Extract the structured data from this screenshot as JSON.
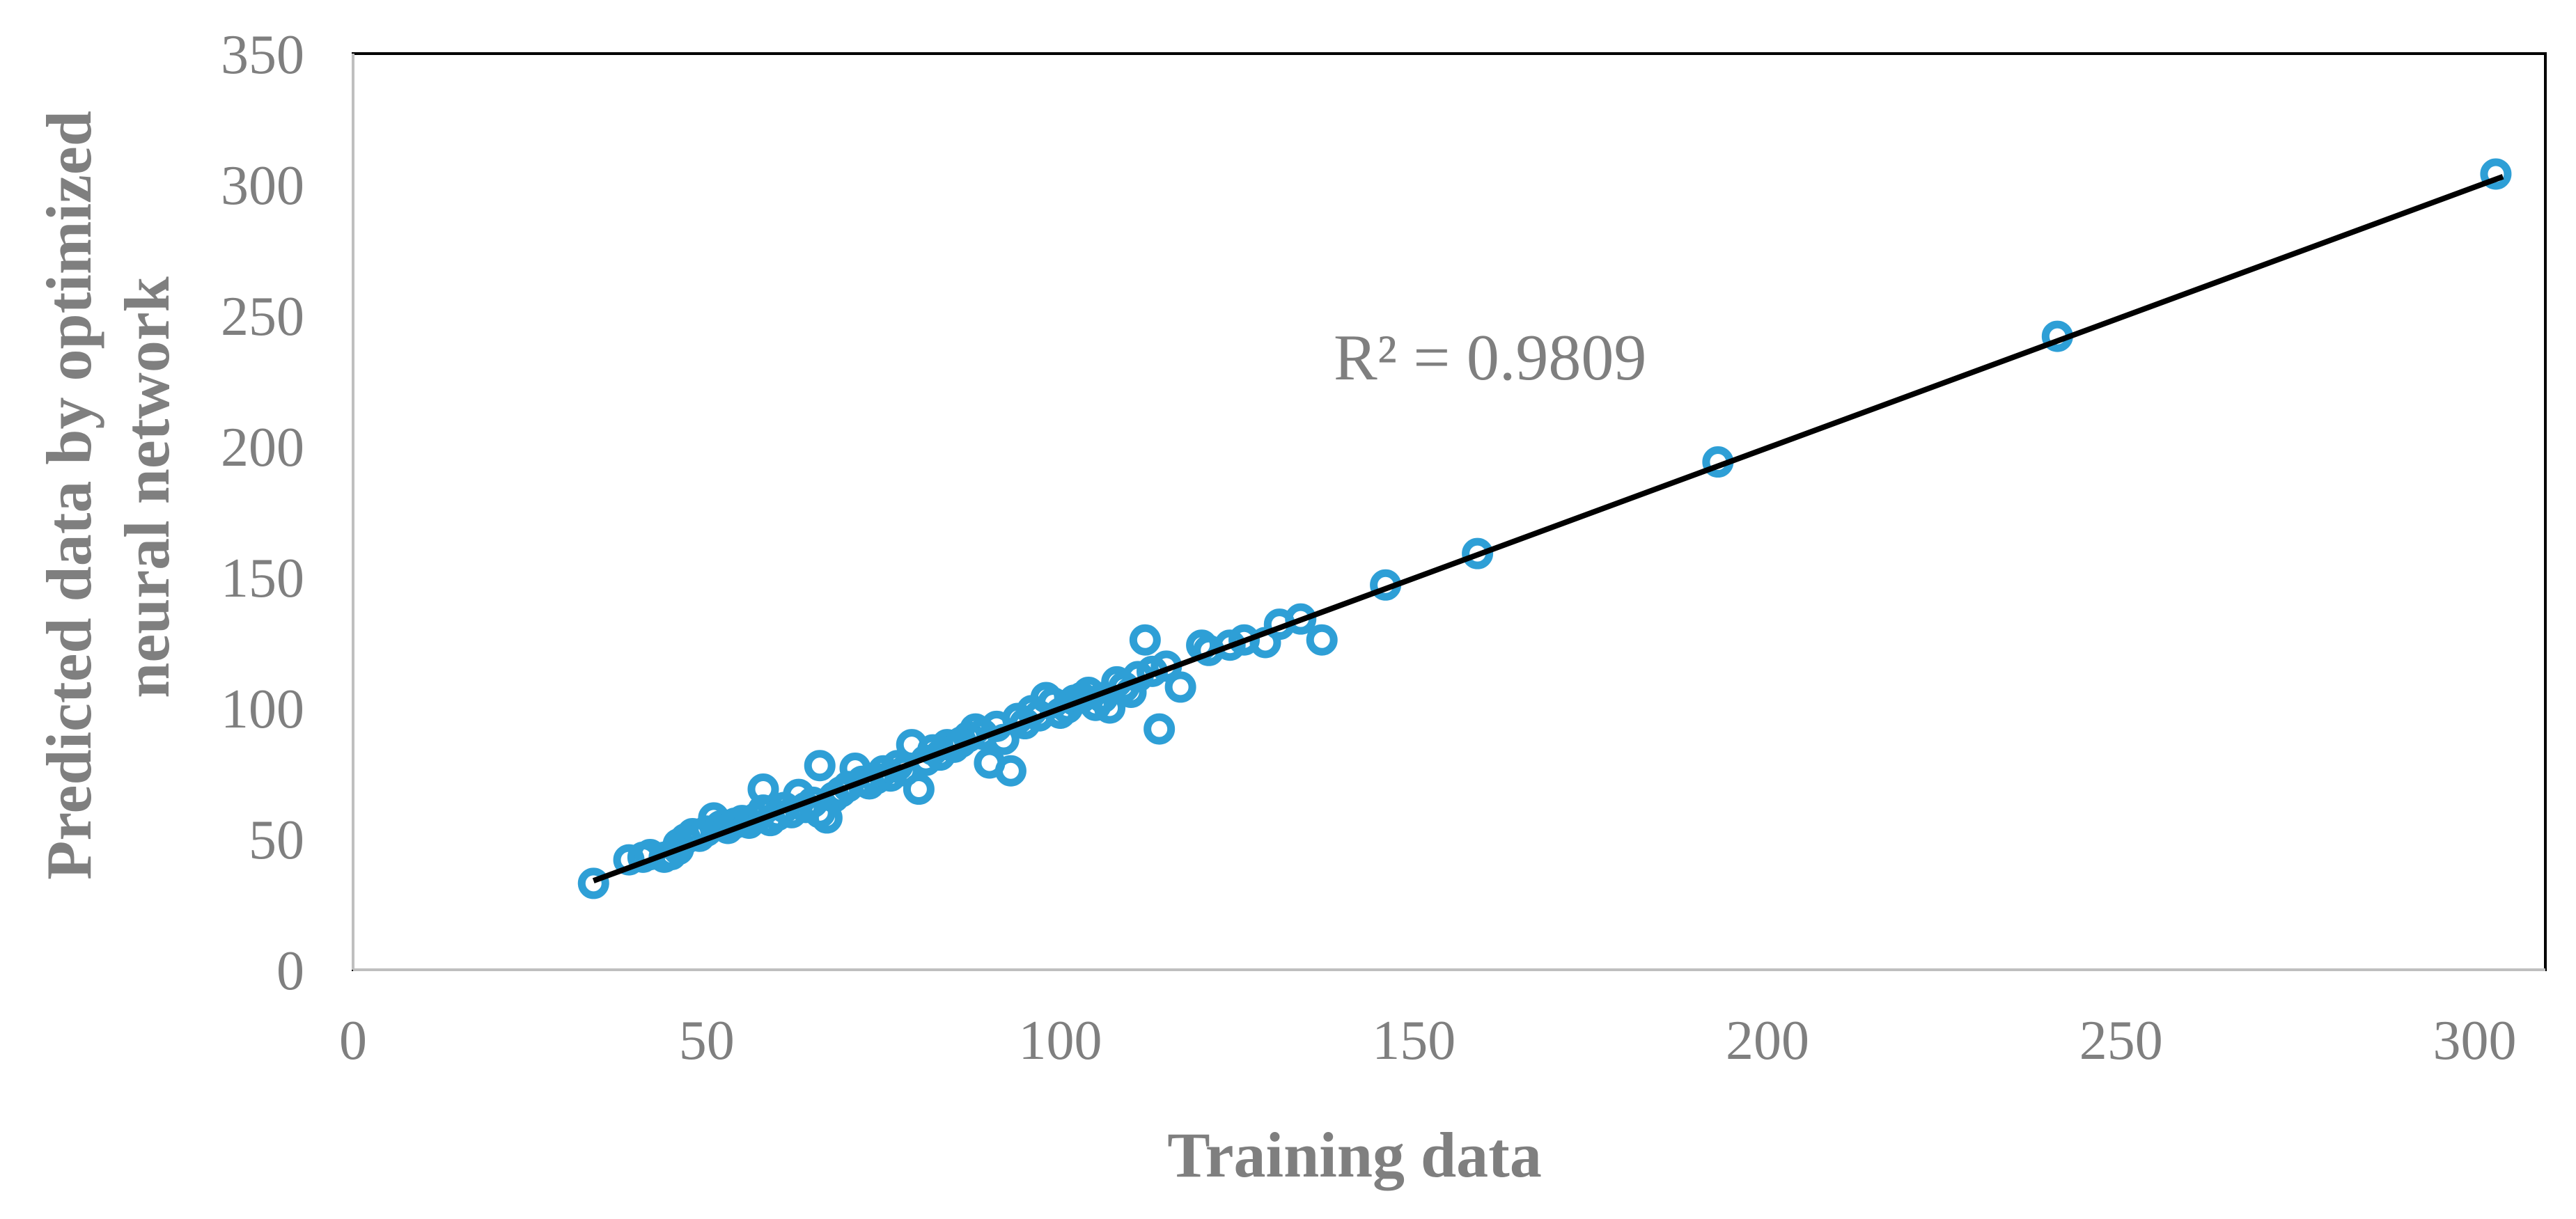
{
  "chart_data": {
    "type": "scatter",
    "xlabel": "Training data",
    "ylabel_lines": [
      "Predicted data by optimized",
      "neural network"
    ],
    "xlim": [
      0,
      310
    ],
    "ylim": [
      0,
      350
    ],
    "xticks": [
      0,
      50,
      100,
      150,
      200,
      250,
      300
    ],
    "yticks": [
      0,
      50,
      100,
      150,
      200,
      250,
      300,
      350
    ],
    "grid": false,
    "marker_color": "#2e9fd6",
    "line_color": "#000000",
    "annotation": "R² = 0.9809",
    "trendline": {
      "x": [
        34,
        304
      ],
      "y": [
        34,
        303
      ]
    },
    "series": [
      {
        "points": [
          [
            34,
            33
          ],
          [
            39,
            42
          ],
          [
            41,
            43
          ],
          [
            42,
            44
          ],
          [
            44,
            43
          ],
          [
            45,
            44
          ],
          [
            46,
            46
          ],
          [
            46,
            48
          ],
          [
            47,
            50
          ],
          [
            48,
            52
          ],
          [
            49,
            51
          ],
          [
            50,
            53
          ],
          [
            51,
            58
          ],
          [
            52,
            55
          ],
          [
            53,
            54
          ],
          [
            54,
            56
          ],
          [
            55,
            57
          ],
          [
            56,
            56
          ],
          [
            57,
            58
          ],
          [
            58,
            61
          ],
          [
            58,
            69
          ],
          [
            59,
            57
          ],
          [
            60,
            59
          ],
          [
            61,
            62
          ],
          [
            62,
            60
          ],
          [
            63,
            67
          ],
          [
            64,
            62
          ],
          [
            65,
            64
          ],
          [
            66,
            78
          ],
          [
            66,
            60
          ],
          [
            67,
            58
          ],
          [
            68,
            66
          ],
          [
            69,
            68
          ],
          [
            70,
            70
          ],
          [
            71,
            77
          ],
          [
            72,
            72
          ],
          [
            73,
            71
          ],
          [
            74,
            73
          ],
          [
            75,
            76
          ],
          [
            76,
            74
          ],
          [
            77,
            78
          ],
          [
            78,
            76
          ],
          [
            79,
            86
          ],
          [
            80,
            69
          ],
          [
            81,
            80
          ],
          [
            82,
            84
          ],
          [
            83,
            82
          ],
          [
            84,
            86
          ],
          [
            85,
            85
          ],
          [
            86,
            87
          ],
          [
            87,
            89
          ],
          [
            88,
            92
          ],
          [
            89,
            90
          ],
          [
            90,
            79
          ],
          [
            91,
            93
          ],
          [
            92,
            88
          ],
          [
            93,
            76
          ],
          [
            94,
            96
          ],
          [
            95,
            94
          ],
          [
            96,
            99
          ],
          [
            97,
            97
          ],
          [
            98,
            104
          ],
          [
            99,
            102
          ],
          [
            100,
            98
          ],
          [
            101,
            100
          ],
          [
            102,
            103
          ],
          [
            103,
            104
          ],
          [
            104,
            106
          ],
          [
            105,
            101
          ],
          [
            106,
            104
          ],
          [
            107,
            100
          ],
          [
            108,
            110
          ],
          [
            109,
            108
          ],
          [
            110,
            106
          ],
          [
            111,
            112
          ],
          [
            112,
            126
          ],
          [
            113,
            114
          ],
          [
            114,
            92
          ],
          [
            115,
            116
          ],
          [
            117,
            108
          ],
          [
            120,
            124
          ],
          [
            121,
            122
          ],
          [
            124,
            124
          ],
          [
            126,
            126
          ],
          [
            129,
            125
          ],
          [
            131,
            132
          ],
          [
            134,
            134
          ],
          [
            137,
            126
          ],
          [
            146,
            147
          ],
          [
            159,
            159
          ],
          [
            193,
            194
          ],
          [
            241,
            242
          ],
          [
            303,
            304
          ]
        ]
      }
    ]
  }
}
